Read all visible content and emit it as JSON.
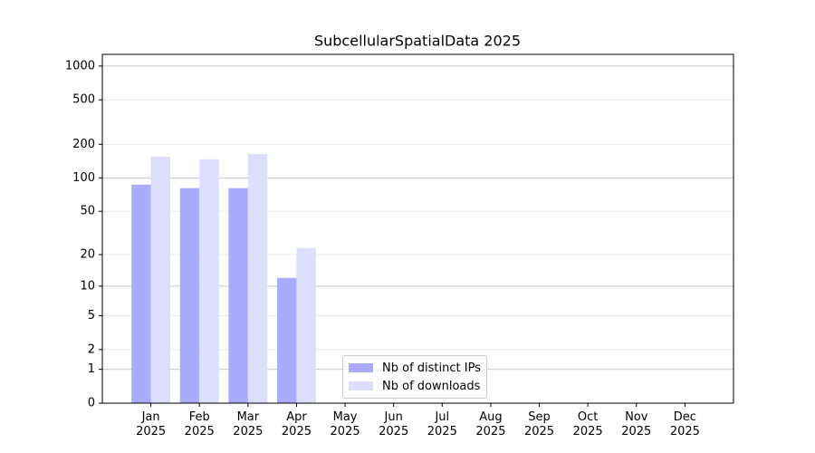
{
  "chart_data": {
    "type": "bar",
    "title": "SubcellularSpatialData 2025",
    "categories": [
      "Jan 2025",
      "Feb 2025",
      "Mar 2025",
      "Apr 2025",
      "May 2025",
      "Jun 2025",
      "Jul 2025",
      "Aug 2025",
      "Sep 2025",
      "Oct 2025",
      "Nov 2025",
      "Dec 2025"
    ],
    "series": [
      {
        "name": "Nb of distinct IPs",
        "color": "#aaaaff",
        "values": [
          87,
          81,
          81,
          12,
          null,
          null,
          null,
          null,
          null,
          null,
          null,
          null
        ]
      },
      {
        "name": "Nb of downloads",
        "color": "#ddddff",
        "values": [
          155,
          147,
          164,
          23,
          null,
          null,
          null,
          null,
          null,
          null,
          null,
          null
        ]
      }
    ],
    "yscale": "log1p",
    "ylim": [
      0,
      1270
    ],
    "yticks": [
      0,
      1,
      2,
      5,
      10,
      20,
      50,
      100,
      200,
      500,
      1000
    ],
    "grid": true,
    "legend": "lower center"
  }
}
